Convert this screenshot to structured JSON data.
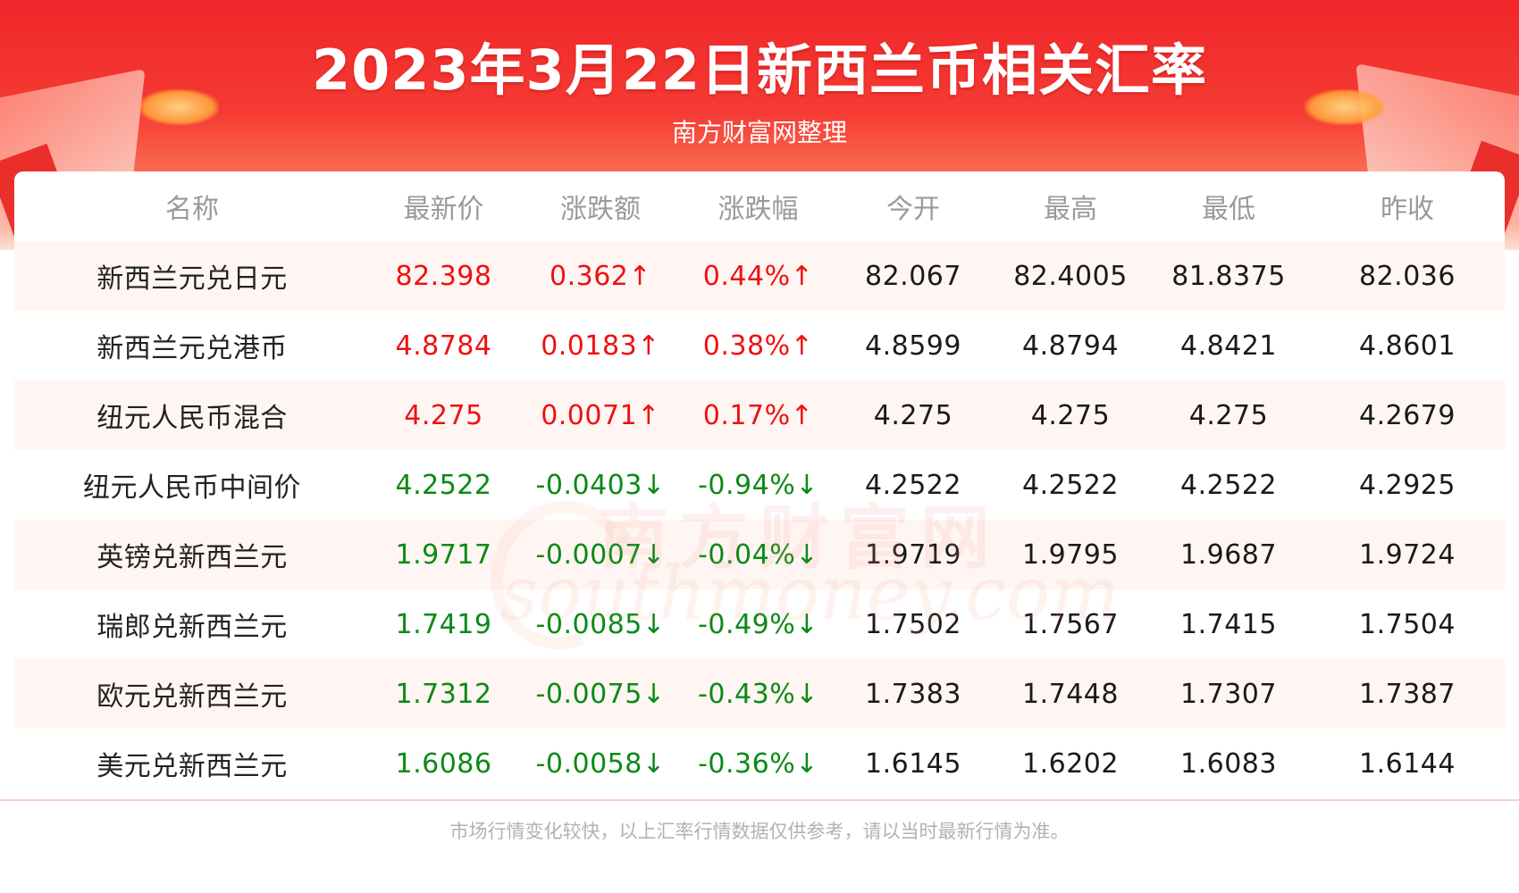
{
  "title": "2023年3月22日新西兰币相关汇率",
  "subtitle": "南方财富网整理",
  "table": {
    "headers": [
      "名称",
      "最新价",
      "涨跌额",
      "涨跌幅",
      "今开",
      "最高",
      "最低",
      "昨收"
    ],
    "rows": [
      {
        "name": "新西兰元兑日元",
        "latest": "82.398",
        "change": "0.362↑",
        "change_pct": "0.44%↑",
        "open": "82.067",
        "high": "82.4005",
        "low": "81.8375",
        "prev_close": "82.036",
        "direction": "up"
      },
      {
        "name": "新西兰元兑港币",
        "latest": "4.8784",
        "change": "0.0183↑",
        "change_pct": "0.38%↑",
        "open": "4.8599",
        "high": "4.8794",
        "low": "4.8421",
        "prev_close": "4.8601",
        "direction": "up"
      },
      {
        "name": "纽元人民币混合",
        "latest": "4.275",
        "change": "0.0071↑",
        "change_pct": "0.17%↑",
        "open": "4.275",
        "high": "4.275",
        "low": "4.275",
        "prev_close": "4.2679",
        "direction": "up"
      },
      {
        "name": "纽元人民币中间价",
        "latest": "4.2522",
        "change": "-0.0403↓",
        "change_pct": "-0.94%↓",
        "open": "4.2522",
        "high": "4.2522",
        "low": "4.2522",
        "prev_close": "4.2925",
        "direction": "down"
      },
      {
        "name": "英镑兑新西兰元",
        "latest": "1.9717",
        "change": "-0.0007↓",
        "change_pct": "-0.04%↓",
        "open": "1.9719",
        "high": "1.9795",
        "low": "1.9687",
        "prev_close": "1.9724",
        "direction": "down"
      },
      {
        "name": "瑞郎兑新西兰元",
        "latest": "1.7419",
        "change": "-0.0085↓",
        "change_pct": "-0.49%↓",
        "open": "1.7502",
        "high": "1.7567",
        "low": "1.7415",
        "prev_close": "1.7504",
        "direction": "down"
      },
      {
        "name": "欧元兑新西兰元",
        "latest": "1.7312",
        "change": "-0.0075↓",
        "change_pct": "-0.43%↓",
        "open": "1.7383",
        "high": "1.7448",
        "low": "1.7307",
        "prev_close": "1.7387",
        "direction": "down"
      },
      {
        "name": "美元兑新西兰元",
        "latest": "1.6086",
        "change": "-0.0058↓",
        "change_pct": "-0.36%↓",
        "open": "1.6145",
        "high": "1.6202",
        "low": "1.6083",
        "prev_close": "1.6144",
        "direction": "down"
      }
    ]
  },
  "watermark": {
    "cn": "南方财富网",
    "en": "southmoney.com"
  },
  "footer": "市场行情变化较快，以上汇率行情数据仅供参考，请以当时最新行情为准。",
  "colors": {
    "up": "#ee1111",
    "down": "#0a8a16",
    "banner": "#f0262a",
    "header_text": "#9a9a9a"
  }
}
